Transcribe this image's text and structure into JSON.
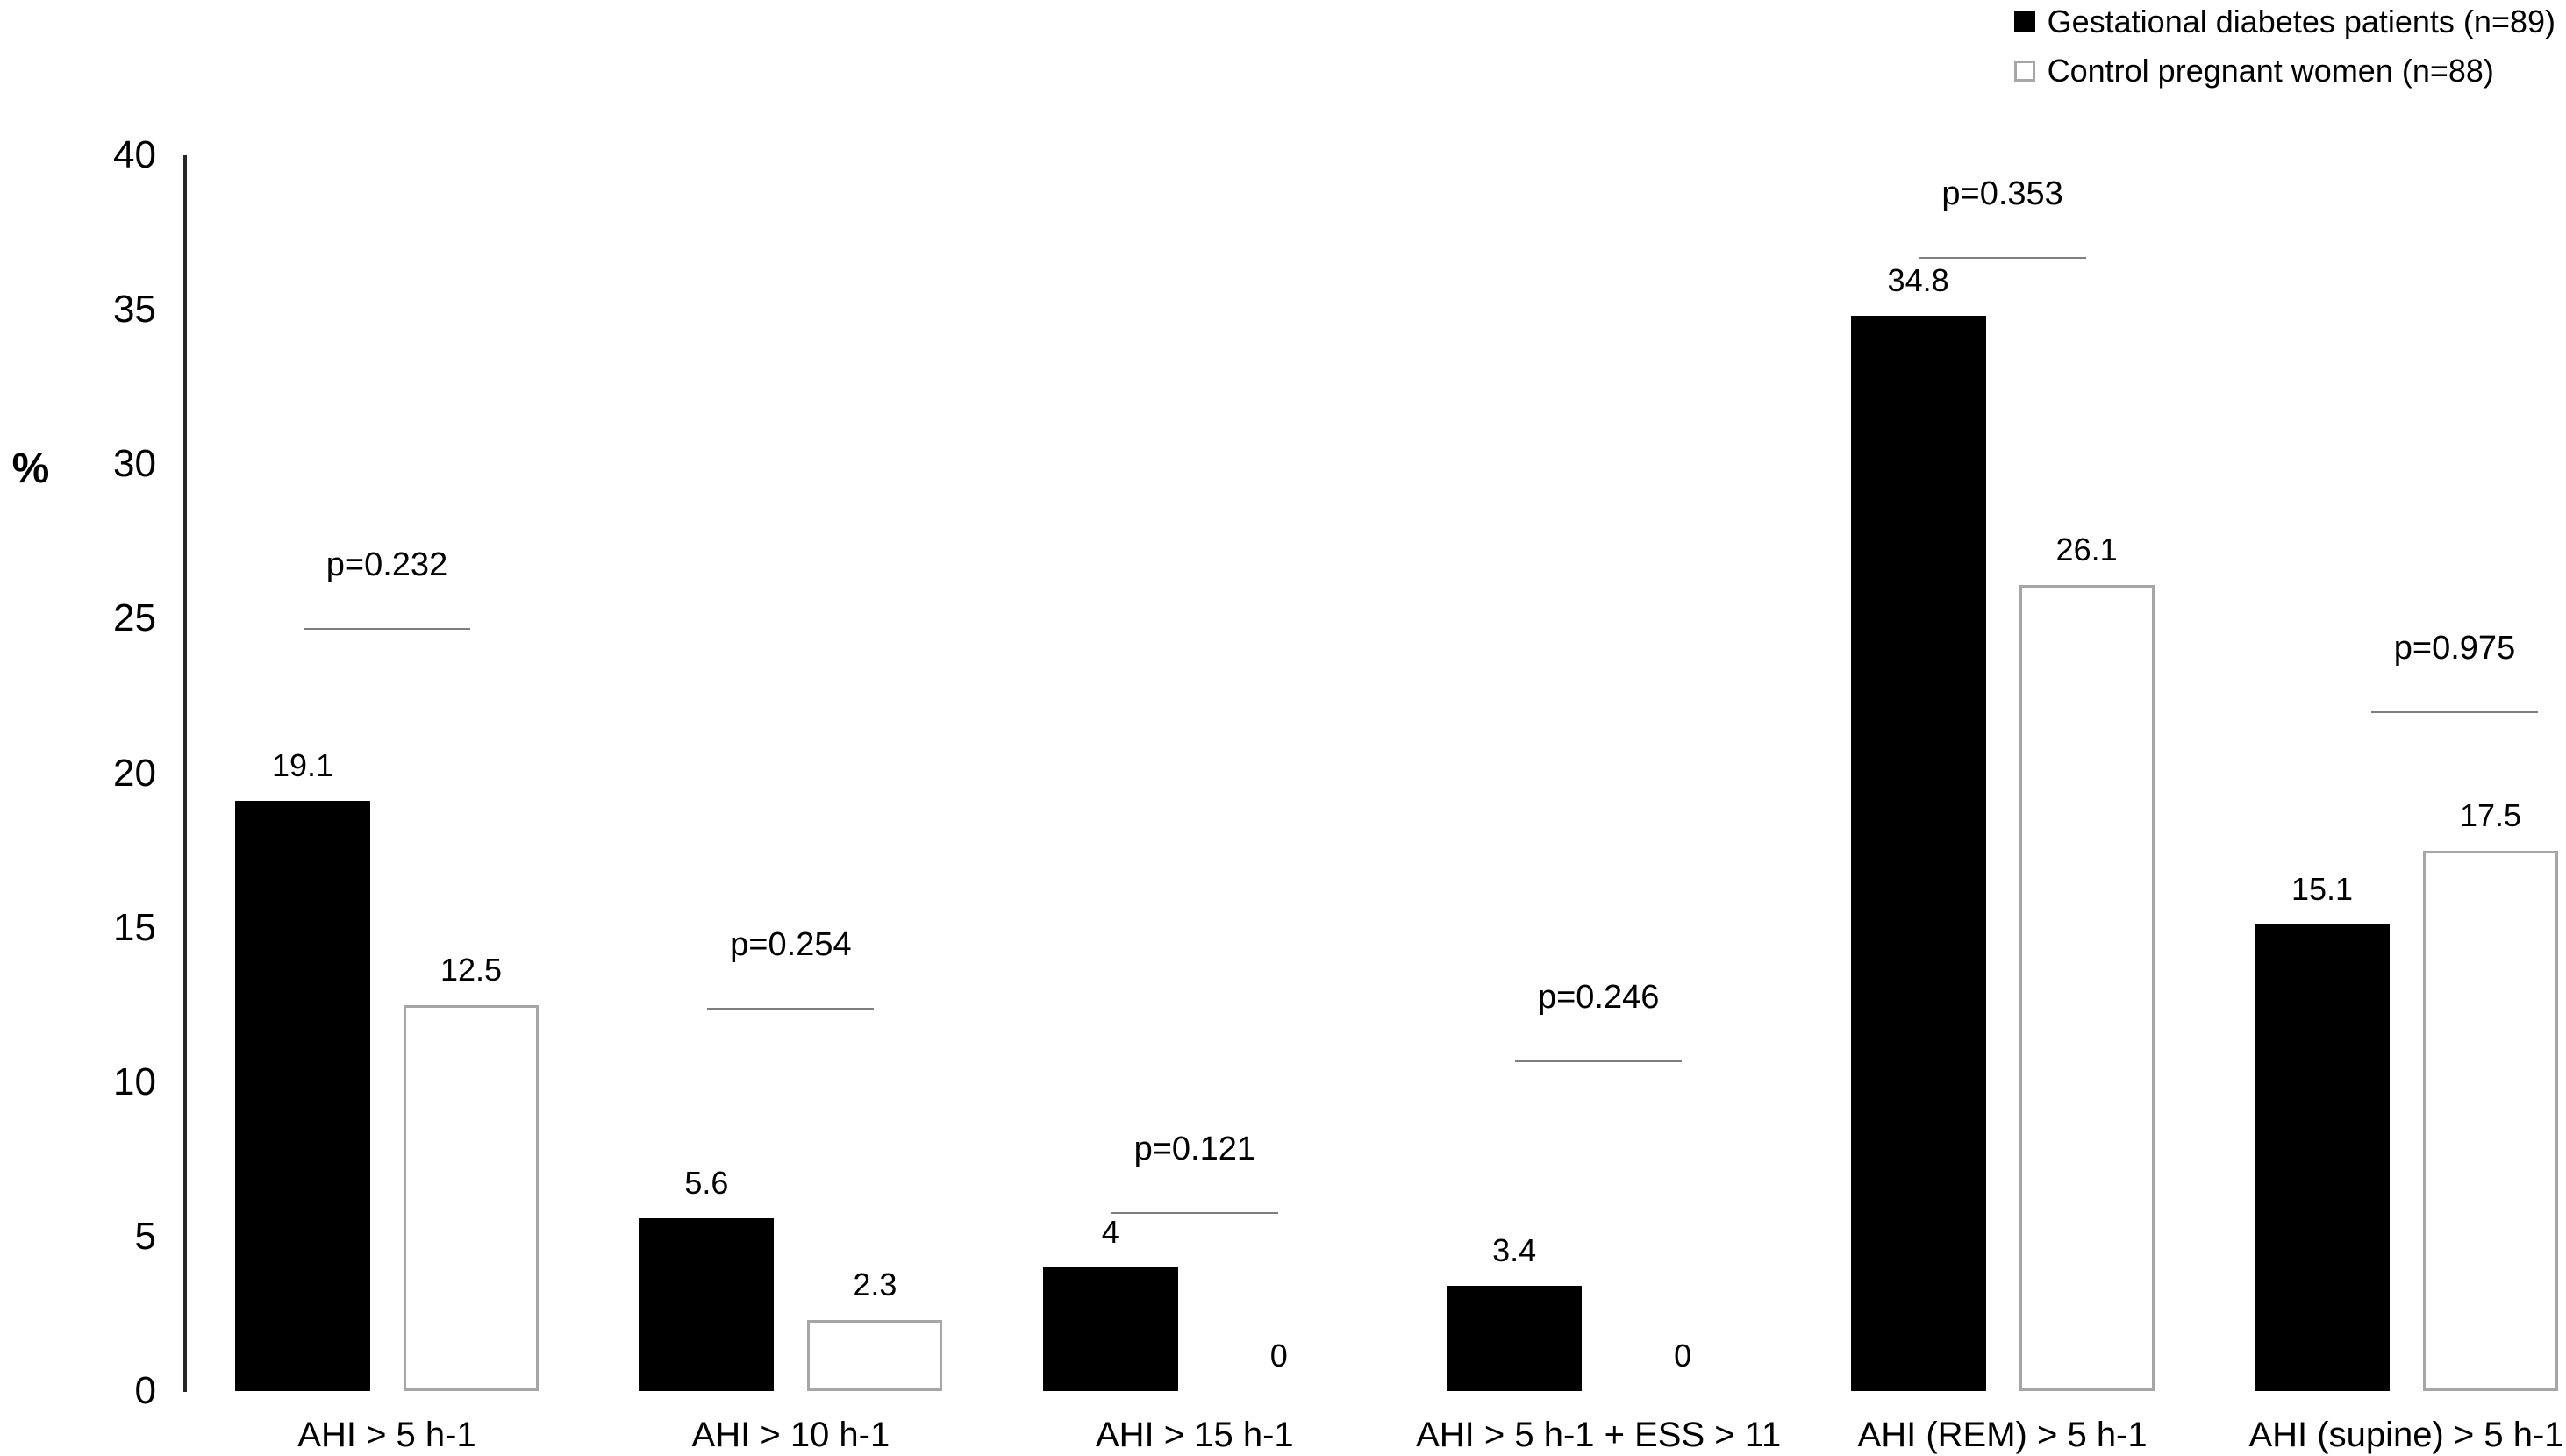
{
  "legend": {
    "items": [
      {
        "label": "Gestational diabetes patients (n=89)",
        "swatch": "filled-black-square"
      },
      {
        "label": "Control pregnant women (n=88)",
        "swatch": "outlined-white-square"
      }
    ]
  },
  "y_axis": {
    "label": "%"
  },
  "chart_data": {
    "type": "bar",
    "title": "",
    "xlabel": "",
    "ylabel": "%",
    "ylim": [
      0,
      40
    ],
    "yticks": [
      0,
      5,
      10,
      15,
      20,
      25,
      30,
      35,
      40
    ],
    "grid": false,
    "legend_position": "top-right",
    "categories": [
      "AHI > 5 h-1",
      "AHI > 10 h-1",
      "AHI > 15 h-1",
      "AHI > 5 h-1 + ESS > 11",
      "AHI (REM) > 5 h-1",
      "AHI (supine) > 5 h-1"
    ],
    "series": [
      {
        "name": "Gestational diabetes patients (n=89)",
        "color": "#000000",
        "values": [
          19.1,
          5.6,
          4,
          3.4,
          34.8,
          15.1
        ]
      },
      {
        "name": "Control pregnant women (n=88)",
        "color": "#ffffff",
        "border_color": "#a6a6a6",
        "values": [
          12.5,
          2.3,
          0,
          0,
          26.1,
          17.5
        ]
      }
    ],
    "p_values": [
      {
        "label": "p=0.232",
        "line_y": 24.7,
        "x_offset": 0
      },
      {
        "label": "p=0.254",
        "line_y": 12.4,
        "x_offset": 0
      },
      {
        "label": "p=0.121",
        "line_y": 5.8,
        "x_offset": 0
      },
      {
        "label": "p=0.246",
        "line_y": 10.7,
        "x_offset": 0
      },
      {
        "label": "p=0.353",
        "line_y": 36.7,
        "x_offset": 0
      },
      {
        "label": "p=0.975",
        "line_y": 22.0,
        "x_offset": 55
      }
    ]
  },
  "colors": {
    "gdm_bar_fill": "#000000",
    "control_bar_fill": "#ffffff",
    "control_bar_border": "#a6a6a6",
    "p_line": "#7f7f7f",
    "axis_line": "#262626",
    "text": "#000000"
  }
}
